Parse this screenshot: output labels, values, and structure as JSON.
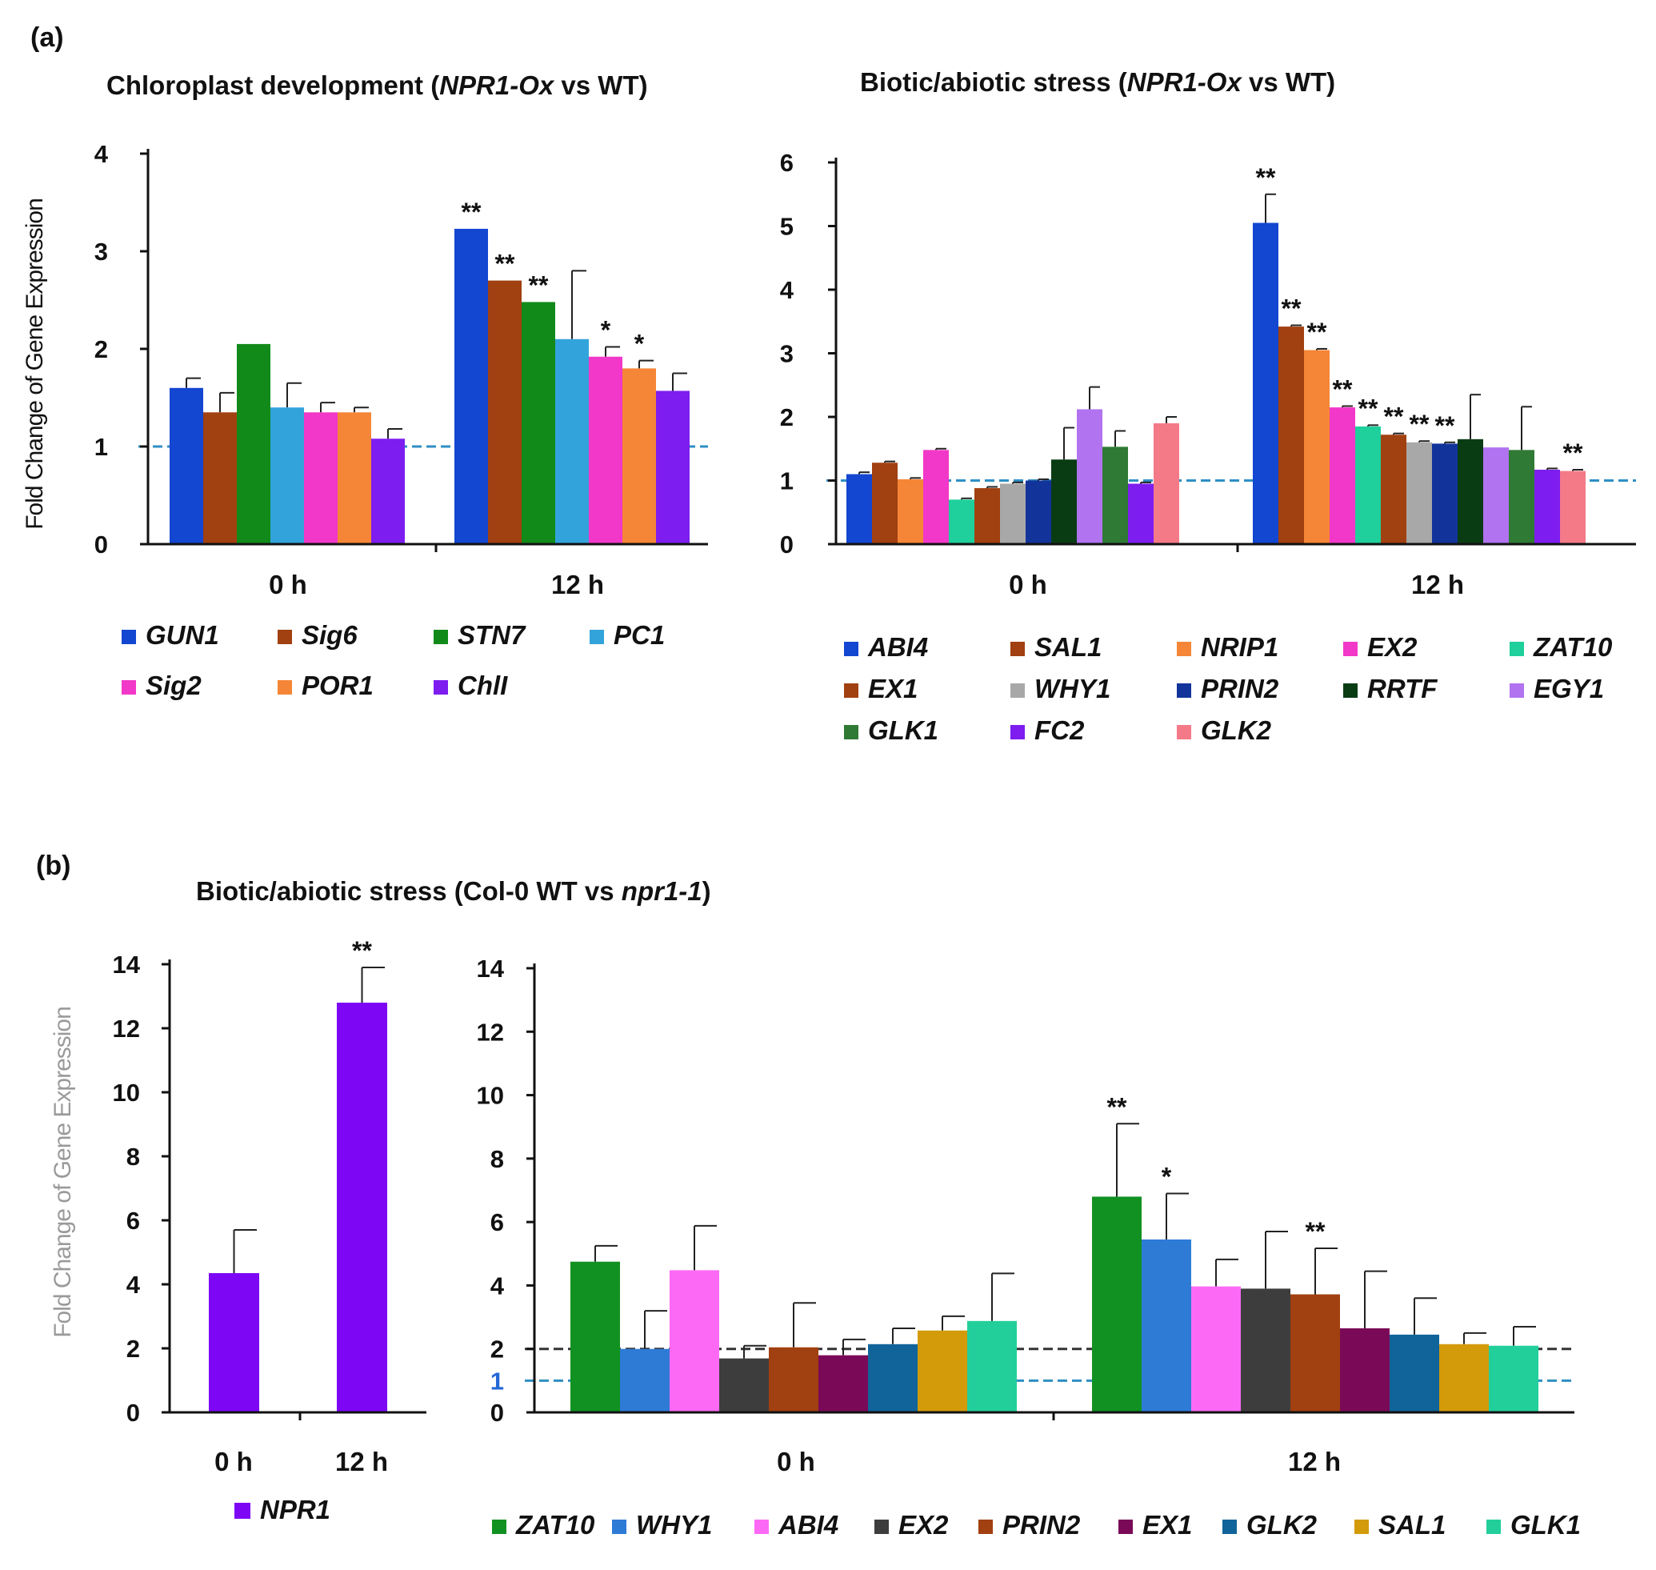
{
  "chart_data": [
    {
      "id": "a-left",
      "type": "bar",
      "panel_label": "(a)",
      "title_parts": [
        {
          "text": "Chloroplast  development  (",
          "italic": false
        },
        {
          "text": "NPR1-Ox",
          "italic": true
        },
        {
          "text": " vs WT)",
          "italic": false
        }
      ],
      "ylabel": "Fold Change of Gene Expression",
      "ylim": [
        0,
        4
      ],
      "yticks": [
        "0",
        "1",
        "2",
        "3",
        "4"
      ],
      "reference_lines": [
        {
          "y": 1,
          "label": "",
          "color": "#2f8fc4"
        }
      ],
      "categories": [
        "0 h",
        "12 h"
      ],
      "series": [
        {
          "name": "GUN1",
          "color": "#1346d1",
          "values": [
            1.6,
            3.23
          ],
          "errors": [
            0.1,
            0.0
          ],
          "sig": [
            "",
            "**"
          ]
        },
        {
          "name": "Sig6",
          "color": "#a14010",
          "values": [
            1.35,
            2.7
          ],
          "errors": [
            0.2,
            0.0
          ],
          "sig": [
            "",
            "**"
          ]
        },
        {
          "name": "STN7",
          "color": "#128a1a",
          "values": [
            2.05,
            2.48
          ],
          "errors": [
            0.0,
            0.0
          ],
          "sig": [
            "",
            "**"
          ]
        },
        {
          "name": "PC1",
          "color": "#33a3dc",
          "values": [
            1.4,
            2.1
          ],
          "errors": [
            0.25,
            0.7
          ],
          "sig": [
            "",
            ""
          ]
        },
        {
          "name": "Sig2",
          "color": "#f238c8",
          "values": [
            1.35,
            1.92
          ],
          "errors": [
            0.1,
            0.1
          ],
          "sig": [
            "",
            "*"
          ]
        },
        {
          "name": "POR1",
          "color": "#f58637",
          "values": [
            1.35,
            1.8
          ],
          "errors": [
            0.05,
            0.08
          ],
          "sig": [
            "",
            "*"
          ]
        },
        {
          "name": "ChlI",
          "color": "#7d1df0",
          "values": [
            1.08,
            1.57
          ],
          "errors": [
            0.1,
            0.18
          ],
          "sig": [
            "",
            ""
          ]
        }
      ]
    },
    {
      "id": "a-right",
      "type": "bar",
      "title_parts": [
        {
          "text": "Biotic/abiotic  stress  (",
          "italic": false
        },
        {
          "text": "NPR1-Ox",
          "italic": true
        },
        {
          "text": " vs WT)",
          "italic": false
        }
      ],
      "ylim": [
        0,
        6
      ],
      "yticks": [
        "0",
        "1",
        "2",
        "3",
        "4",
        "5",
        "6"
      ],
      "reference_lines": [
        {
          "y": 1,
          "label": "",
          "color": "#2f8fc4"
        }
      ],
      "categories": [
        "0 h",
        "12 h"
      ],
      "series": [
        {
          "name": "ABI4",
          "color": "#1346d1",
          "values": [
            1.1,
            5.05
          ],
          "errors": [
            0.03,
            0.45
          ],
          "sig": [
            "",
            "**"
          ]
        },
        {
          "name": "SAL1",
          "color": "#a14010",
          "values": [
            1.28,
            3.42
          ],
          "errors": [
            0.02,
            0.02
          ],
          "sig": [
            "",
            "**"
          ]
        },
        {
          "name": "NRIP1",
          "color": "#f58637",
          "values": [
            1.02,
            3.05
          ],
          "errors": [
            0.02,
            0.02
          ],
          "sig": [
            "",
            "**"
          ]
        },
        {
          "name": "EX2",
          "color": "#f238c8",
          "values": [
            1.48,
            2.15
          ],
          "errors": [
            0.02,
            0.02
          ],
          "sig": [
            "",
            "**"
          ]
        },
        {
          "name": "ZAT10",
          "color": "#1fcf9c",
          "values": [
            0.7,
            1.85
          ],
          "errors": [
            0.02,
            0.02
          ],
          "sig": [
            "",
            "**"
          ]
        },
        {
          "name": "EX1",
          "color": "#a14010",
          "values": [
            0.88,
            1.72
          ],
          "errors": [
            0.02,
            0.02
          ],
          "sig": [
            "",
            "**"
          ]
        },
        {
          "name": "WHY1",
          "color": "#a8a8a8",
          "values": [
            0.95,
            1.6
          ],
          "errors": [
            0.02,
            0.02
          ],
          "sig": [
            "",
            "**"
          ]
        },
        {
          "name": "PRIN2",
          "color": "#12339a",
          "values": [
            1.0,
            1.58
          ],
          "errors": [
            0.02,
            0.02
          ],
          "sig": [
            "",
            "**"
          ]
        },
        {
          "name": "RRTF",
          "color": "#0a3c14",
          "values": [
            1.33,
            1.65
          ],
          "errors": [
            0.5,
            0.7
          ],
          "sig": [
            "",
            ""
          ]
        },
        {
          "name": "EGY1",
          "color": "#b173f0",
          "values": [
            2.12,
            1.52
          ],
          "errors": [
            0.35,
            0.0
          ],
          "sig": [
            "",
            ""
          ]
        },
        {
          "name": "GLK1",
          "color": "#2f7a34",
          "values": [
            1.53,
            1.48
          ],
          "errors": [
            0.25,
            0.68
          ],
          "sig": [
            "",
            ""
          ]
        },
        {
          "name": "FC2",
          "color": "#7d1df0",
          "values": [
            0.95,
            1.17
          ],
          "errors": [
            0.02,
            0.02
          ],
          "sig": [
            "",
            ""
          ]
        },
        {
          "name": "GLK2",
          "color": "#f47a88",
          "values": [
            1.9,
            1.15
          ],
          "errors": [
            0.1,
            0.02
          ],
          "sig": [
            "",
            "**"
          ]
        }
      ]
    },
    {
      "id": "b-left",
      "type": "bar",
      "panel_label": "(b)",
      "title_parts": [
        {
          "text": "Biotic/abiotic  stress  (Col-0  WT vs ",
          "italic": false
        },
        {
          "text": "npr1-1",
          "italic": true
        },
        {
          "text": ")",
          "italic": false
        }
      ],
      "ylabel": "Fold Change of Gene Expression",
      "ylim": [
        0,
        14
      ],
      "yticks": [
        "0",
        "2",
        "4",
        "6",
        "8",
        "10",
        "12",
        "14"
      ],
      "categories": [
        "0 h",
        "12 h"
      ],
      "series": [
        {
          "name": "NPR1",
          "color": "#7d06f5",
          "values": [
            4.35,
            12.8
          ],
          "errors": [
            1.35,
            1.1
          ],
          "sig": [
            "",
            "**"
          ]
        }
      ]
    },
    {
      "id": "b-right",
      "type": "bar",
      "ylim": [
        0,
        14
      ],
      "yticks": [
        "0",
        "2",
        "4",
        "6",
        "8",
        "10",
        "12",
        "14"
      ],
      "reference_lines": [
        {
          "y": 2,
          "label": "",
          "color": "#333333"
        },
        {
          "y": 1,
          "label": "1",
          "color": "#2f8fc4"
        }
      ],
      "categories": [
        "0 h",
        "12 h"
      ],
      "series": [
        {
          "name": "ZAT10",
          "color": "#119121",
          "values": [
            4.75,
            6.8
          ],
          "errors": [
            0.5,
            2.3
          ],
          "sig": [
            "",
            "**"
          ]
        },
        {
          "name": "WHY1",
          "color": "#2e7bd6",
          "values": [
            2.0,
            5.45
          ],
          "errors": [
            1.2,
            1.45
          ],
          "sig": [
            "",
            "*"
          ]
        },
        {
          "name": "ABI4",
          "color": "#fc6af5",
          "values": [
            4.48,
            3.97
          ],
          "errors": [
            1.4,
            0.85
          ],
          "sig": [
            "",
            ""
          ]
        },
        {
          "name": "EX2",
          "color": "#3d3d3d",
          "values": [
            1.7,
            3.9
          ],
          "errors": [
            0.4,
            1.8
          ],
          "sig": [
            "",
            ""
          ]
        },
        {
          "name": "PRIN2",
          "color": "#a14010",
          "values": [
            2.05,
            3.72
          ],
          "errors": [
            1.4,
            1.45
          ],
          "sig": [
            "",
            "**"
          ]
        },
        {
          "name": "EX1",
          "color": "#7a0a58",
          "values": [
            1.8,
            2.65
          ],
          "errors": [
            0.5,
            1.8
          ],
          "sig": [
            "",
            ""
          ]
        },
        {
          "name": "GLK2",
          "color": "#10649a",
          "values": [
            2.15,
            2.45
          ],
          "errors": [
            0.5,
            1.15
          ],
          "sig": [
            "",
            ""
          ]
        },
        {
          "name": "SAL1",
          "color": "#d39a0a",
          "values": [
            2.58,
            2.15
          ],
          "errors": [
            0.45,
            0.35
          ],
          "sig": [
            "",
            ""
          ]
        },
        {
          "name": "GLK1",
          "color": "#22cf9a",
          "values": [
            2.88,
            2.1
          ],
          "errors": [
            1.5,
            0.6
          ],
          "sig": [
            "",
            ""
          ]
        }
      ]
    }
  ]
}
